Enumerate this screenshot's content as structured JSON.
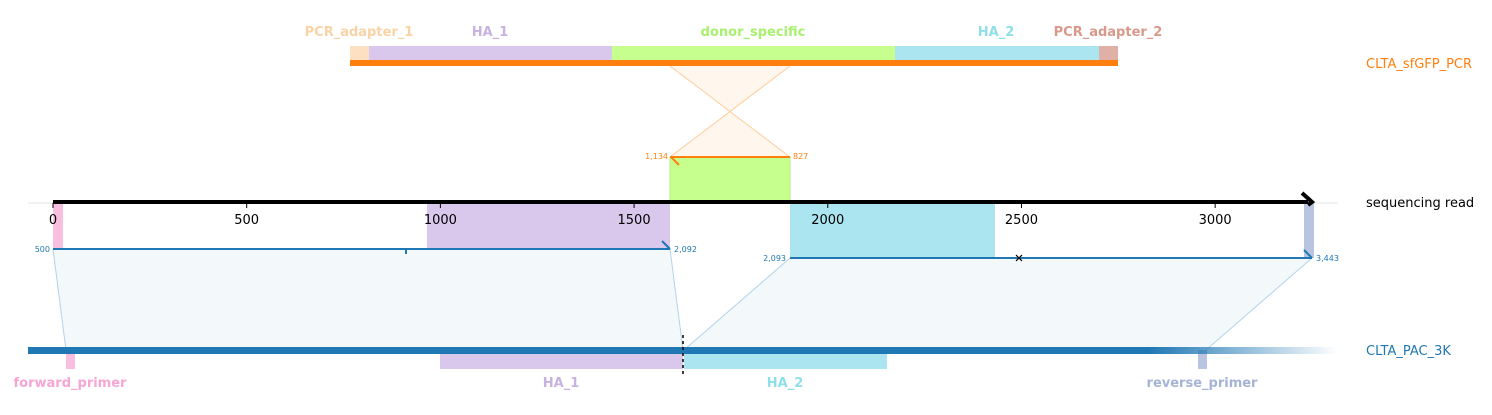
{
  "colors": {
    "orange": "#ff7f0e",
    "blue": "#1f77b4",
    "black": "#000000",
    "pcr_adapter_1": "#fde0c1",
    "pcr_adapter_1_label": "#f9d3a5",
    "ha1": "#d9c8ec",
    "ha1_label": "#c7b2e0",
    "donor": "#c6ff8e",
    "donor_label": "#a8f070",
    "ha2": "#abe6f0",
    "ha2_label": "#8edfe9",
    "pcr_adapter_2": "#e0b0a6",
    "pcr_adapter_2_label": "#d9998a",
    "forward_primer": "#f9bfe0",
    "forward_primer_label": "#f7a6d3",
    "reverse_primer": "#b8c4e0",
    "reverse_primer_label": "#a5b3d6",
    "shade": "#f3f8fb"
  },
  "top_construct": {
    "name": "CLTA_sfGFP_PCR",
    "features": [
      {
        "id": "pcr-adapter-1",
        "label": "PCR_adapter_1",
        "color_key": "pcr_adapter_1"
      },
      {
        "id": "ha1",
        "label": "HA_1",
        "color_key": "ha1"
      },
      {
        "id": "donor-specific",
        "label": "donor_specific",
        "color_key": "donor"
      },
      {
        "id": "ha2",
        "label": "HA_2",
        "color_key": "ha2"
      },
      {
        "id": "pcr-adapter-2",
        "label": "PCR_adapter_2",
        "color_key": "pcr_adapter_2"
      }
    ]
  },
  "read": {
    "name": "sequencing read",
    "axis": {
      "min": 0,
      "max": 3250,
      "ticks": [
        0,
        500,
        1000,
        1500,
        2000,
        2500,
        3000
      ]
    }
  },
  "alignments": {
    "top": {
      "read_start": 1600,
      "read_end": 1910,
      "label_left": "1,134",
      "label_right": "827"
    },
    "left": {
      "read_start": 0,
      "read_end": 1600,
      "label_left": "500",
      "label_right": "2,092"
    },
    "right": {
      "read_start": 1910,
      "read_end": 3250,
      "label_left": "2,093",
      "label_right": "3,443"
    }
  },
  "bottom_construct": {
    "name": "CLTA_PAC_3K",
    "features": [
      {
        "id": "forward-primer",
        "label": "forward_primer"
      },
      {
        "id": "ha1",
        "label": "HA_1"
      },
      {
        "id": "ha2",
        "label": "HA_2"
      },
      {
        "id": "reverse-primer",
        "label": "reverse_primer"
      }
    ]
  }
}
